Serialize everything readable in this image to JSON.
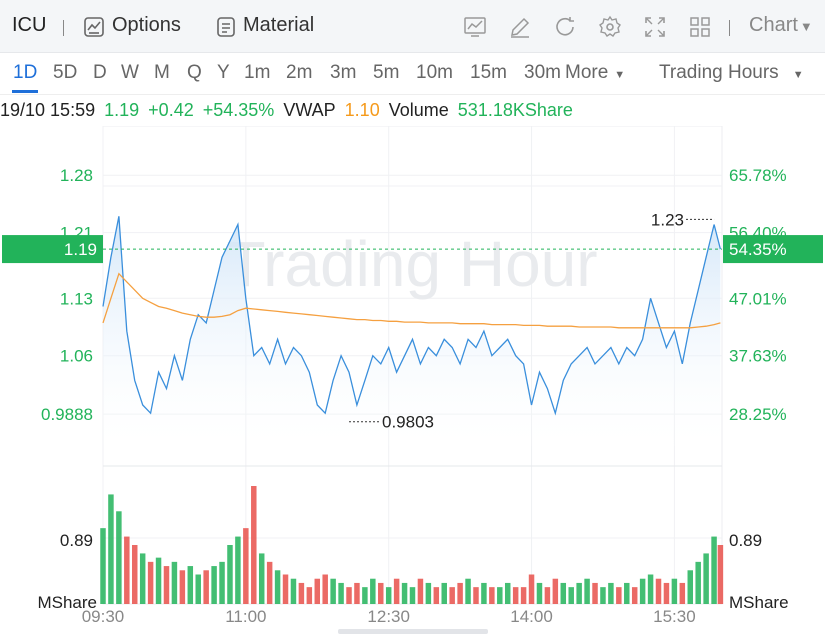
{
  "toolbar": {
    "symbol": "ICU",
    "options_label": "Options",
    "material_label": "Material",
    "chart_label": "Chart",
    "icons": [
      "chart-line-icon",
      "pen-icon",
      "refresh-icon",
      "gear-icon",
      "fullscreen-icon",
      "grid-icon"
    ]
  },
  "periods": {
    "items": [
      "1D",
      "5D",
      "D",
      "W",
      "M",
      "Q",
      "Y",
      "1m",
      "2m",
      "3m",
      "5m",
      "10m",
      "15m",
      "30m"
    ],
    "active": "1D",
    "more_label": "More",
    "session_label": "Trading Hours"
  },
  "info": {
    "datetime": "19/10 15:59",
    "price": "1.19",
    "change": "+0.42",
    "change_pct": "+54.35%",
    "vwap_label": "VWAP",
    "vwap_value": "1.10",
    "volume_label": "Volume",
    "volume_value": "531.18KShare"
  },
  "colors": {
    "up": "#22b35a",
    "down": "#e8504a",
    "price_line": "#3a8fdc",
    "vwap_line": "#f5a040",
    "accent": "#1e6fd9"
  },
  "chart_data": {
    "type": "line",
    "watermark": "Trading Hour",
    "x_ticks": [
      "09:30",
      "11:00",
      "12:30",
      "14:00",
      "15:30"
    ],
    "price_ticks": [
      "1.28",
      "1.21",
      "1.13",
      "1.06",
      "0.9888"
    ],
    "pct_ticks": [
      "65.78%",
      "56.40%",
      "47.01%",
      "37.63%",
      "28.25%"
    ],
    "price_range": [
      0.95,
      1.34
    ],
    "current_price_label": "1.19",
    "current_pct_label": "54.35%",
    "current_price": 1.19,
    "max_label": "1.23",
    "min_label": "0.9803",
    "volume_tick": "0.89",
    "volume_unit": "MShare",
    "volume_max": 1.4,
    "series": [
      {
        "name": "Price",
        "x": [
          "09:30",
          "09:35",
          "09:40",
          "09:45",
          "09:50",
          "09:55",
          "10:00",
          "10:05",
          "10:10",
          "10:15",
          "10:20",
          "10:25",
          "10:30",
          "10:35",
          "10:40",
          "10:45",
          "10:50",
          "10:55",
          "11:00",
          "11:05",
          "11:10",
          "11:15",
          "11:20",
          "11:25",
          "11:30",
          "11:35",
          "11:40",
          "11:45",
          "11:50",
          "11:55",
          "12:00",
          "12:05",
          "12:10",
          "12:15",
          "12:20",
          "12:25",
          "12:30",
          "12:35",
          "12:40",
          "12:45",
          "12:50",
          "12:55",
          "13:00",
          "13:05",
          "13:10",
          "13:15",
          "13:20",
          "13:25",
          "13:30",
          "13:35",
          "13:40",
          "13:45",
          "13:50",
          "13:55",
          "14:00",
          "14:05",
          "14:10",
          "14:15",
          "14:20",
          "14:25",
          "14:30",
          "14:35",
          "14:40",
          "14:45",
          "14:50",
          "14:55",
          "15:00",
          "15:05",
          "15:10",
          "15:15",
          "15:20",
          "15:25",
          "15:30",
          "15:35",
          "15:40",
          "15:45",
          "15:50",
          "15:55",
          "15:59"
        ],
        "values": [
          1.12,
          1.18,
          1.23,
          1.09,
          1.03,
          1.0,
          0.99,
          1.04,
          1.02,
          1.06,
          1.03,
          1.08,
          1.11,
          1.1,
          1.14,
          1.18,
          1.2,
          1.22,
          1.13,
          1.06,
          1.07,
          1.05,
          1.08,
          1.05,
          1.07,
          1.06,
          1.04,
          1.0,
          0.99,
          1.03,
          1.06,
          1.04,
          1.0,
          1.03,
          1.06,
          1.05,
          1.07,
          1.04,
          1.06,
          1.08,
          1.05,
          1.07,
          1.06,
          1.08,
          1.07,
          1.05,
          1.08,
          1.07,
          1.09,
          1.06,
          1.07,
          1.08,
          1.06,
          1.05,
          1.0,
          1.04,
          1.02,
          0.99,
          1.03,
          1.05,
          1.06,
          1.07,
          1.05,
          1.06,
          1.07,
          1.05,
          1.07,
          1.06,
          1.08,
          1.13,
          1.1,
          1.07,
          1.09,
          1.05,
          1.1,
          1.14,
          1.18,
          1.22,
          1.19
        ]
      },
      {
        "name": "VWAP",
        "x": [
          "09:30",
          "09:35",
          "09:40",
          "09:45",
          "09:50",
          "09:55",
          "10:00",
          "10:05",
          "10:10",
          "10:15",
          "10:20",
          "10:25",
          "10:30",
          "10:35",
          "10:40",
          "10:45",
          "10:50",
          "10:55",
          "11:00",
          "11:05",
          "11:10",
          "11:15",
          "11:20",
          "11:25",
          "11:30",
          "11:35",
          "11:40",
          "11:45",
          "11:50",
          "11:55",
          "12:00",
          "12:05",
          "12:10",
          "12:15",
          "12:20",
          "12:25",
          "12:30",
          "12:35",
          "12:40",
          "12:45",
          "12:50",
          "12:55",
          "13:00",
          "13:05",
          "13:10",
          "13:15",
          "13:20",
          "13:25",
          "13:30",
          "13:35",
          "13:40",
          "13:45",
          "13:50",
          "13:55",
          "14:00",
          "14:05",
          "14:10",
          "14:15",
          "14:20",
          "14:25",
          "14:30",
          "14:35",
          "14:40",
          "14:45",
          "14:50",
          "14:55",
          "15:00",
          "15:05",
          "15:10",
          "15:15",
          "15:20",
          "15:25",
          "15:30",
          "15:35",
          "15:40",
          "15:45",
          "15:50",
          "15:55",
          "15:59"
        ],
        "values": [
          1.1,
          1.13,
          1.16,
          1.15,
          1.14,
          1.13,
          1.125,
          1.12,
          1.118,
          1.115,
          1.112,
          1.11,
          1.108,
          1.107,
          1.107,
          1.108,
          1.11,
          1.115,
          1.118,
          1.117,
          1.116,
          1.115,
          1.114,
          1.113,
          1.112,
          1.111,
          1.11,
          1.109,
          1.108,
          1.107,
          1.106,
          1.105,
          1.104,
          1.104,
          1.103,
          1.103,
          1.102,
          1.102,
          1.101,
          1.101,
          1.101,
          1.1,
          1.1,
          1.1,
          1.1,
          1.099,
          1.099,
          1.099,
          1.099,
          1.098,
          1.098,
          1.098,
          1.098,
          1.097,
          1.097,
          1.097,
          1.096,
          1.096,
          1.096,
          1.096,
          1.095,
          1.095,
          1.095,
          1.095,
          1.095,
          1.094,
          1.094,
          1.094,
          1.094,
          1.094,
          1.094,
          1.094,
          1.094,
          1.094,
          1.094,
          1.095,
          1.096,
          1.098,
          1.1
        ]
      }
    ],
    "volume": {
      "x": [
        "09:30",
        "09:35",
        "09:40",
        "09:45",
        "09:50",
        "09:55",
        "10:00",
        "10:05",
        "10:10",
        "10:15",
        "10:20",
        "10:25",
        "10:30",
        "10:35",
        "10:40",
        "10:45",
        "10:50",
        "10:55",
        "11:00",
        "11:05",
        "11:10",
        "11:15",
        "11:20",
        "11:25",
        "11:30",
        "11:35",
        "11:40",
        "11:45",
        "11:50",
        "11:55",
        "12:00",
        "12:05",
        "12:10",
        "12:15",
        "12:20",
        "12:25",
        "12:30",
        "12:35",
        "12:40",
        "12:45",
        "12:50",
        "12:55",
        "13:00",
        "13:05",
        "13:10",
        "13:15",
        "13:20",
        "13:25",
        "13:30",
        "13:35",
        "13:40",
        "13:45",
        "13:50",
        "13:55",
        "14:00",
        "14:05",
        "14:10",
        "14:15",
        "14:20",
        "14:25",
        "14:30",
        "14:35",
        "14:40",
        "14:45",
        "14:50",
        "14:55",
        "15:00",
        "15:05",
        "15:10",
        "15:15",
        "15:20",
        "15:25",
        "15:30",
        "15:35",
        "15:40",
        "15:45",
        "15:50",
        "15:55",
        "15:59"
      ],
      "values": [
        0.9,
        1.3,
        1.1,
        0.8,
        0.7,
        0.6,
        0.5,
        0.55,
        0.45,
        0.5,
        0.4,
        0.45,
        0.35,
        0.4,
        0.45,
        0.5,
        0.7,
        0.8,
        0.9,
        1.4,
        0.6,
        0.5,
        0.4,
        0.35,
        0.3,
        0.25,
        0.2,
        0.3,
        0.35,
        0.3,
        0.25,
        0.2,
        0.25,
        0.2,
        0.3,
        0.25,
        0.2,
        0.3,
        0.25,
        0.2,
        0.3,
        0.25,
        0.2,
        0.25,
        0.2,
        0.25,
        0.3,
        0.2,
        0.25,
        0.2,
        0.2,
        0.25,
        0.2,
        0.2,
        0.35,
        0.25,
        0.2,
        0.3,
        0.25,
        0.2,
        0.25,
        0.3,
        0.25,
        0.2,
        0.25,
        0.2,
        0.25,
        0.2,
        0.3,
        0.35,
        0.3,
        0.25,
        0.3,
        0.25,
        0.4,
        0.5,
        0.6,
        0.8,
        0.7
      ],
      "directions": [
        "up",
        "up",
        "up",
        "down",
        "down",
        "up",
        "down",
        "up",
        "down",
        "up",
        "down",
        "up",
        "up",
        "down",
        "up",
        "up",
        "up",
        "up",
        "down",
        "down",
        "up",
        "down",
        "up",
        "down",
        "up",
        "down",
        "down",
        "down",
        "down",
        "up",
        "up",
        "down",
        "down",
        "up",
        "up",
        "down",
        "up",
        "down",
        "up",
        "up",
        "down",
        "up",
        "down",
        "up",
        "down",
        "down",
        "up",
        "down",
        "up",
        "down",
        "up",
        "up",
        "down",
        "down",
        "down",
        "up",
        "down",
        "down",
        "up",
        "up",
        "up",
        "up",
        "down",
        "up",
        "up",
        "down",
        "up",
        "down",
        "up",
        "up",
        "down",
        "down",
        "up",
        "down",
        "up",
        "up",
        "up",
        "up",
        "down"
      ]
    }
  }
}
